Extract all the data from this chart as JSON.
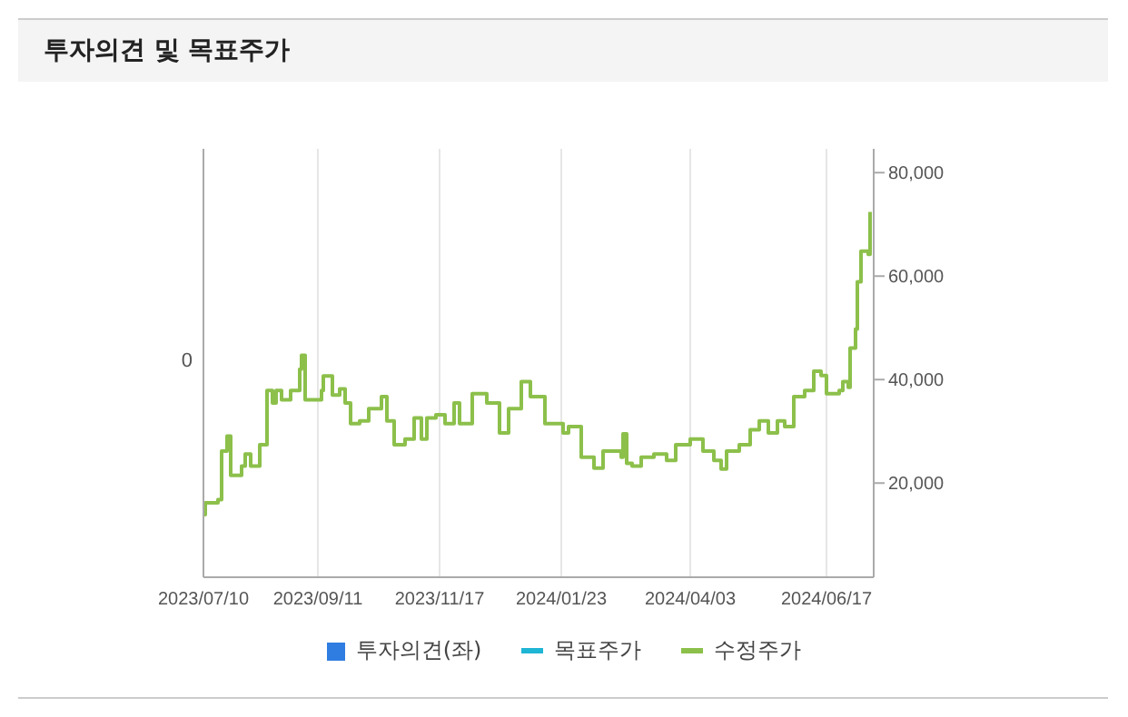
{
  "chart_data": {
    "type": "step",
    "title": "투자의견 및 목표주가",
    "legend": "bottom",
    "grid": "x",
    "annotations": [
      "0"
    ],
    "x": [
      "2023-07-10",
      "2023-07-11",
      "2023-07-18",
      "2023-07-20",
      "2023-07-23",
      "2023-07-25",
      "2023-07-31",
      "2023-08-02",
      "2023-08-05",
      "2023-08-10",
      "2023-08-14",
      "2023-08-17",
      "2023-08-19",
      "2023-08-22",
      "2023-08-27",
      "2023-09-01",
      "2023-09-02",
      "2023-09-04",
      "2023-09-13",
      "2023-09-14",
      "2023-09-19",
      "2023-09-23",
      "2023-09-26",
      "2023-09-29",
      "2023-10-04",
      "2023-10-09",
      "2023-10-16",
      "2023-10-19",
      "2023-10-23",
      "2023-10-29",
      "2023-11-03",
      "2023-11-07",
      "2023-11-10",
      "2023-11-15",
      "2023-11-20",
      "2023-11-25",
      "2023-11-28",
      "2023-12-05",
      "2023-12-13",
      "2023-12-20",
      "2023-12-25",
      "2024-01-01",
      "2024-01-06",
      "2024-01-14",
      "2024-01-24",
      "2024-01-27",
      "2024-02-03",
      "2024-02-10",
      "2024-02-15",
      "2024-02-25",
      "2024-02-26",
      "2024-02-28",
      "2024-03-02",
      "2024-03-07",
      "2024-03-14",
      "2024-03-21",
      "2024-03-26",
      "2024-04-03",
      "2024-04-10",
      "2024-04-16",
      "2024-04-20",
      "2024-04-23",
      "2024-04-30",
      "2024-05-06",
      "2024-05-11",
      "2024-05-16",
      "2024-05-21",
      "2024-05-25",
      "2024-05-30",
      "2024-06-05",
      "2024-06-10",
      "2024-06-14",
      "2024-06-17",
      "2024-06-24",
      "2024-06-26",
      "2024-06-29",
      "2024-06-30",
      "2024-07-03",
      "2024-07-04",
      "2024-07-06",
      "2024-07-10",
      "2024-07-11"
    ],
    "xlim": [
      "2023-07-10",
      "2024-07-13"
    ],
    "xticks": [
      {
        "value": "2023-07-10",
        "label": "2023/07/10"
      },
      {
        "value": "2023-09-11",
        "label": "2023/09/11"
      },
      {
        "value": "2023-11-17",
        "label": "2023/11/17"
      },
      {
        "value": "2024-01-23",
        "label": "2024/01/23"
      },
      {
        "value": "2024-04-03",
        "label": "2024/04/03"
      },
      {
        "value": "2024-06-17",
        "label": "2024/06/17"
      }
    ],
    "y2lim": [
      1800,
      84600
    ],
    "y2ticks": [
      {
        "value": 20000,
        "label": "20,000"
      },
      {
        "value": 40000,
        "label": "40,000"
      },
      {
        "value": 60000,
        "label": "60,000"
      },
      {
        "value": 80000,
        "label": "80,000"
      }
    ],
    "series": [
      {
        "name": "투자의견(좌)",
        "type": "bar",
        "color": "#2f7de1",
        "values": [
          null,
          null,
          null,
          null,
          null,
          null,
          null,
          null,
          null,
          null,
          null,
          null,
          null,
          null,
          null,
          null,
          null,
          null,
          null,
          null,
          null,
          null,
          null,
          null,
          null,
          null,
          null,
          null,
          null,
          null,
          null,
          null,
          null,
          null,
          null,
          null,
          null,
          null,
          null,
          null,
          null,
          null,
          null,
          null,
          null,
          null,
          null,
          null,
          null,
          null,
          null,
          null,
          null,
          null,
          null,
          null,
          null,
          null,
          null,
          null,
          null,
          null,
          null,
          null,
          null,
          null,
          null,
          null,
          null,
          null,
          null,
          null,
          null,
          null,
          null,
          null,
          null,
          null,
          null,
          null,
          null,
          null
        ]
      },
      {
        "name": "목표주가",
        "type": "line",
        "color": "#1fb5d5",
        "axis": "y2",
        "values": [
          null,
          null,
          null,
          null,
          null,
          null,
          null,
          null,
          null,
          null,
          null,
          null,
          null,
          null,
          null,
          null,
          null,
          null,
          null,
          null,
          null,
          null,
          null,
          null,
          null,
          null,
          null,
          null,
          null,
          null,
          null,
          null,
          null,
          null,
          null,
          null,
          null,
          null,
          null,
          null,
          null,
          null,
          null,
          null,
          null,
          null,
          null,
          null,
          null,
          null,
          null,
          null,
          null,
          null,
          null,
          null,
          null,
          null,
          null,
          null,
          null,
          null,
          null,
          null,
          null,
          null,
          null,
          null,
          null,
          null,
          null,
          null,
          null,
          null,
          null,
          null,
          null,
          null,
          null,
          null,
          null,
          null
        ]
      },
      {
        "name": "수정주가",
        "color": "#8cc04b",
        "axis": "y2",
        "values": [
          13900,
          16200,
          16800,
          26200,
          29100,
          21500,
          23300,
          25600,
          23300,
          27400,
          37900,
          35500,
          37900,
          36100,
          37900,
          42000,
          44700,
          36100,
          37900,
          40700,
          37000,
          38200,
          35500,
          31500,
          32000,
          34400,
          36700,
          32000,
          27400,
          28500,
          32600,
          28500,
          32600,
          33200,
          31500,
          35500,
          31500,
          37300,
          35500,
          29700,
          34400,
          39600,
          36700,
          31500,
          29700,
          30900,
          25000,
          22900,
          26200,
          25000,
          29500,
          23800,
          23300,
          25000,
          25600,
          24400,
          27400,
          28500,
          26200,
          24400,
          22700,
          26200,
          27400,
          30300,
          32000,
          29700,
          32000,
          30900,
          36700,
          37900,
          41600,
          40800,
          37300,
          37900,
          39600,
          38500,
          46100,
          49800,
          58900,
          64800,
          64200,
          72400
        ]
      }
    ]
  }
}
